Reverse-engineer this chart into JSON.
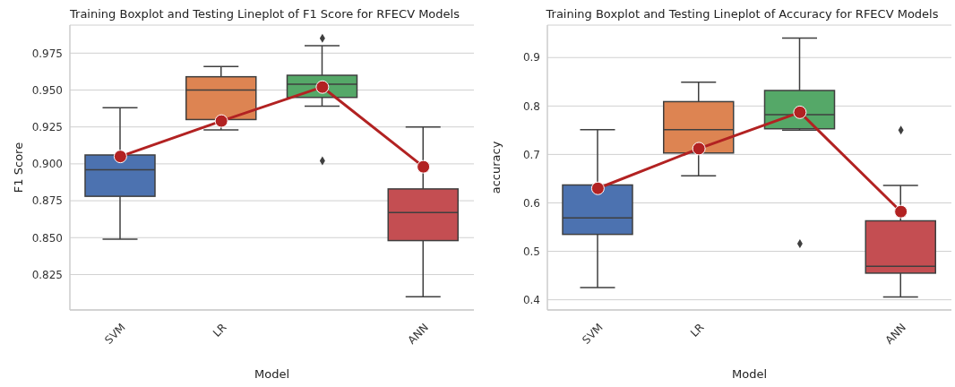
{
  "chart_data": [
    {
      "type": "box",
      "title": "Training Boxplot and Testing Lineplot of F1 Score for RFECV Models",
      "xlabel": "Model",
      "ylabel": "F1 Score",
      "categories": [
        "SVM",
        "LR",
        null,
        "ANN"
      ],
      "ylim": [
        0.801,
        0.994
      ],
      "yticks": [
        0.825,
        {
          "value": 0.85,
          "label": "0.850"
        },
        0.875,
        {
          "value": 0.9,
          "label": "0.900"
        },
        0.925,
        {
          "value": 0.95,
          "label": "0.950"
        },
        0.975
      ],
      "grid": "y",
      "marker": "circle",
      "series": [
        {
          "colors": [
            "#4c72b0",
            "#dd8452",
            "#55a868",
            "#c44e52"
          ],
          "boxes": [
            {
              "low": 0.849,
              "q1": 0.878,
              "median": 0.896,
              "q3": 0.906,
              "high": 0.938
            },
            {
              "low": 0.923,
              "q1": 0.93,
              "median": 0.95,
              "q3": 0.959,
              "high": 0.966
            },
            {
              "low": 0.939,
              "q1": 0.945,
              "median": 0.954,
              "q3": 0.96,
              "high": 0.98,
              "outliers": [
                0.985,
                0.902
              ]
            },
            {
              "low": 0.81,
              "q1": 0.848,
              "median": 0.867,
              "q3": 0.883,
              "high": 0.925
            }
          ]
        },
        {
          "type": "line",
          "color": "#b22222",
          "values": [
            0.905,
            0.929,
            0.952,
            0.898
          ]
        }
      ]
    },
    {
      "type": "box",
      "title": "Training Boxplot and Testing Lineplot of Accuracy for RFECV Models",
      "xlabel": "Model",
      "ylabel": "accuracy",
      "categories": [
        "SVM",
        "LR",
        null,
        "ANN"
      ],
      "ylim": [
        0.379,
        0.967
      ],
      "yticks": [
        0.4,
        0.5,
        0.6,
        0.7,
        0.8,
        0.9
      ],
      "grid": "y",
      "marker": "circle",
      "series": [
        {
          "colors": [
            "#4c72b0",
            "#dd8452",
            "#55a868",
            "#c44e52"
          ],
          "boxes": [
            {
              "low": 0.425,
              "q1": 0.535,
              "median": 0.569,
              "q3": 0.637,
              "high": 0.751
            },
            {
              "low": 0.656,
              "q1": 0.703,
              "median": 0.751,
              "q3": 0.809,
              "high": 0.849
            },
            {
              "low": 0.75,
              "q1": 0.753,
              "median": 0.782,
              "q3": 0.832,
              "high": 0.94,
              "outliers": [
                0.516
              ]
            },
            {
              "low": 0.406,
              "q1": 0.455,
              "median": 0.469,
              "q3": 0.563,
              "high": 0.636,
              "outliers": [
                0.75
              ]
            }
          ]
        },
        {
          "type": "line",
          "color": "#b22222",
          "values": [
            0.63,
            0.712,
            0.787,
            0.582
          ]
        }
      ]
    }
  ]
}
